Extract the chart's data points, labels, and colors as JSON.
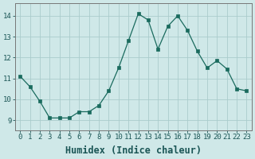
{
  "x": [
    0,
    1,
    2,
    3,
    4,
    5,
    6,
    7,
    8,
    9,
    10,
    11,
    12,
    13,
    14,
    15,
    16,
    17,
    18,
    19,
    20,
    21,
    22,
    23
  ],
  "y": [
    11.1,
    10.6,
    9.9,
    9.1,
    9.1,
    9.1,
    9.4,
    9.4,
    9.7,
    10.4,
    11.5,
    12.8,
    14.1,
    13.8,
    12.4,
    13.5,
    14.0,
    13.3,
    12.3,
    11.5,
    11.85,
    11.45,
    10.5,
    10.4
  ],
  "line_color": "#1a6b5e",
  "marker": "s",
  "marker_size": 2.5,
  "bg_color": "#cfe8e8",
  "grid_color": "#aacccc",
  "xlabel": "Humidex (Indice chaleur)",
  "ylim": [
    8.5,
    14.6
  ],
  "xlim": [
    -0.5,
    23.5
  ],
  "yticks": [
    9,
    10,
    11,
    12,
    13,
    14
  ],
  "xticks": [
    0,
    1,
    2,
    3,
    4,
    5,
    6,
    7,
    8,
    9,
    10,
    11,
    12,
    13,
    14,
    15,
    16,
    17,
    18,
    19,
    20,
    21,
    22,
    23
  ],
  "xtick_labels": [
    "0",
    "1",
    "2",
    "3",
    "4",
    "5",
    "6",
    "7",
    "8",
    "9",
    "10",
    "11",
    "12",
    "13",
    "14",
    "15",
    "16",
    "17",
    "18",
    "19",
    "20",
    "21",
    "22",
    "23"
  ],
  "tick_color": "#1a5555",
  "label_color": "#1a5555",
  "font_size": 6.5,
  "xlabel_fontsize": 8.5,
  "spine_color": "#777777"
}
